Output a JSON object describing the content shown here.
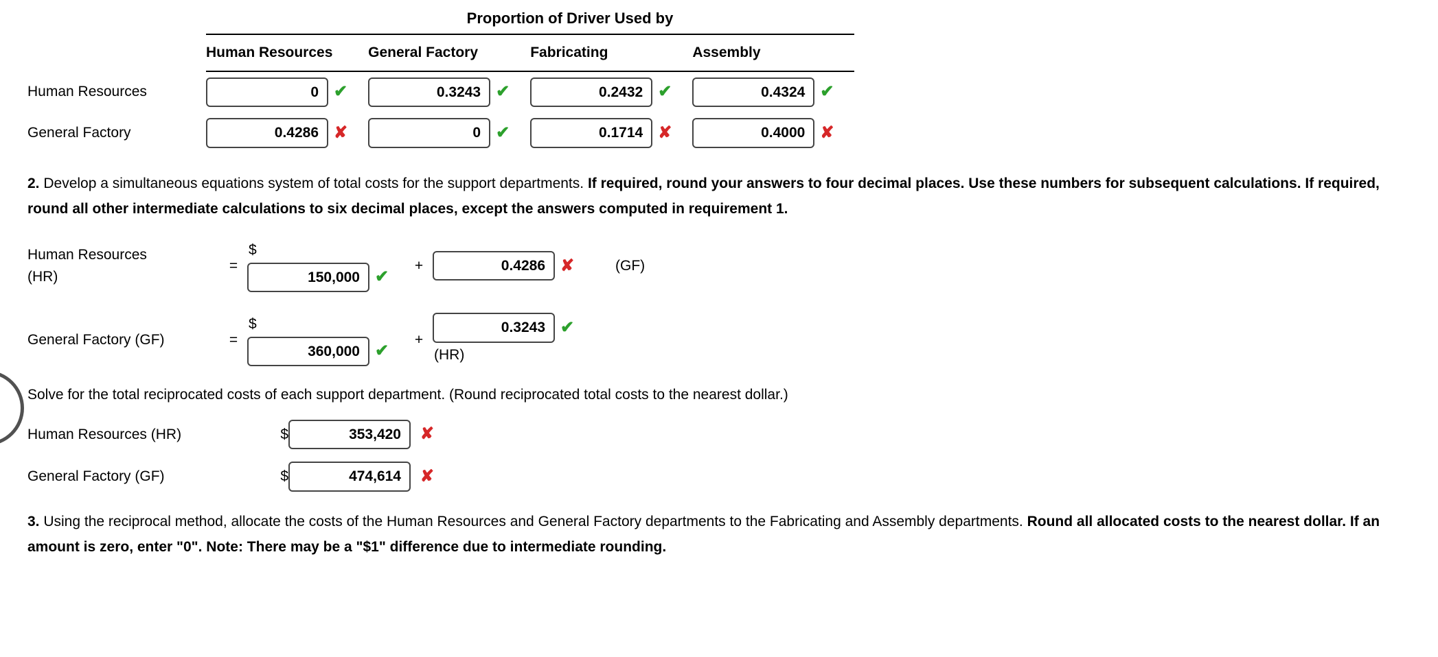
{
  "title": "Proportion of Driver Used by",
  "table": {
    "columns": [
      "Human Resources",
      "General Factory",
      "Fabricating",
      "Assembly"
    ],
    "rows": [
      {
        "label": "Human Resources",
        "cells": [
          {
            "value": "0",
            "mark": "correct"
          },
          {
            "value": "0.3243",
            "mark": "correct"
          },
          {
            "value": "0.2432",
            "mark": "correct"
          },
          {
            "value": "0.4324",
            "mark": "correct"
          }
        ]
      },
      {
        "label": "General Factory",
        "cells": [
          {
            "value": "0.4286",
            "mark": "wrong"
          },
          {
            "value": "0",
            "mark": "correct"
          },
          {
            "value": "0.1714",
            "mark": "wrong"
          },
          {
            "value": "0.4000",
            "mark": "wrong"
          }
        ]
      }
    ]
  },
  "q2": {
    "number": "2.",
    "text_a": " Develop a simultaneous equations system of total costs for the support departments. ",
    "text_b": "If required, round your answers to four decimal places. Use these numbers for subsequent calculations. If required, round all other intermediate calculations to six decimal places, except the answers computed in requirement 1."
  },
  "eq": {
    "hr_label_a": "Human Resources",
    "hr_label_b": "(HR)",
    "gf_label": "General Factory (GF)",
    "equals": "=",
    "plus": "+",
    "dollar": "$",
    "hr_cost": "150,000",
    "hr_cost_mark": "correct",
    "hr_coef": "0.4286",
    "hr_coef_mark": "wrong",
    "hr_coef_hint": "(GF)",
    "gf_cost": "360,000",
    "gf_cost_mark": "correct",
    "gf_coef": "0.3243",
    "gf_coef_mark": "correct",
    "gf_coef_hint": "(HR)"
  },
  "solve_text": "Solve for the total reciprocated costs of each support department. (Round reciprocated total costs to the nearest dollar.)",
  "recip": {
    "hr_label": "Human Resources (HR)",
    "hr_value": "353,420",
    "hr_mark": "wrong",
    "gf_label": "General Factory (GF)",
    "gf_value": "474,614",
    "gf_mark": "wrong",
    "dollar": "$"
  },
  "q3": {
    "number": "3.",
    "text_a": " Using the reciprocal method, allocate the costs of the Human Resources and General Factory departments to the Fabricating and Assembly departments. ",
    "text_b": "Round all allocated costs to the nearest dollar. If an amount is zero, enter \"0\". Note: There may be a \"$1\" difference due to intermediate rounding."
  },
  "marks": {
    "correct": "✔",
    "wrong": "✘"
  }
}
